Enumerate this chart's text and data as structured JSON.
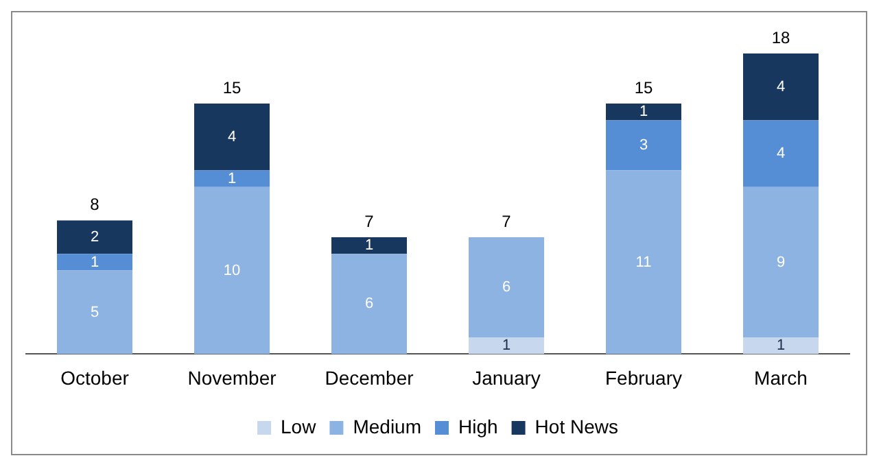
{
  "chart_data": {
    "type": "bar",
    "stacked": true,
    "categories": [
      "October",
      "November",
      "December",
      "January",
      "February",
      "March"
    ],
    "series": [
      {
        "name": "Low",
        "color": "#c6d7ee",
        "values": [
          null,
          null,
          null,
          1,
          null,
          1
        ]
      },
      {
        "name": "Medium",
        "color": "#8db3e2",
        "values": [
          5,
          10,
          6,
          6,
          11,
          9
        ]
      },
      {
        "name": "High",
        "color": "#558ed5",
        "values": [
          1,
          1,
          null,
          null,
          3,
          4
        ]
      },
      {
        "name": "Hot News",
        "color": "#17375e",
        "values": [
          2,
          4,
          1,
          null,
          1,
          4
        ]
      }
    ],
    "data_labels": true,
    "totals": [
      "8",
      "15",
      "7",
      "7",
      "15",
      "18"
    ],
    "legend": "bottom",
    "grid": false,
    "tick_labels": "x"
  }
}
